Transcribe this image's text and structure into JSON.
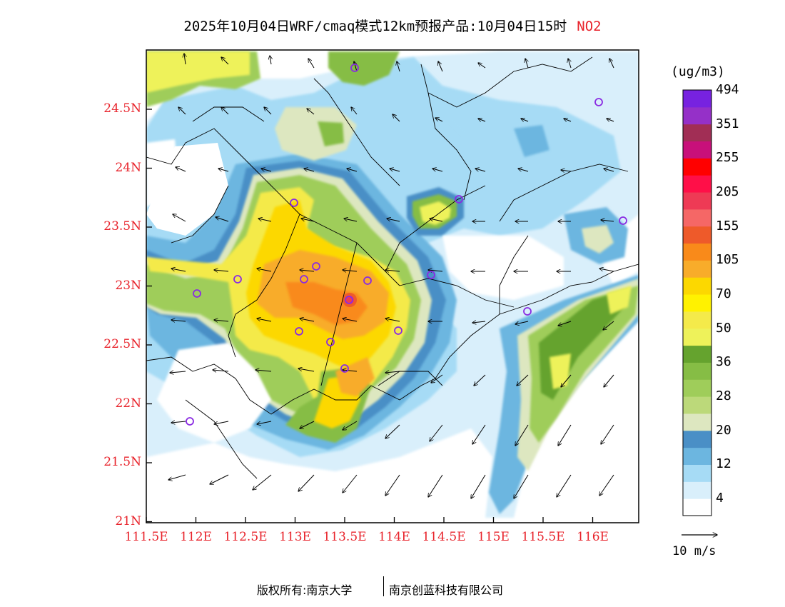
{
  "title": "2025年10月04日WRF/cmaq模式12km预报产品:10月04日15时",
  "pollutant": "NO2",
  "unit_label": "(ug/m3)",
  "lat_labels": [
    "24.5N",
    "24N",
    "23.5N",
    "23N",
    "22.5N",
    "22N",
    "21.5N",
    "21N"
  ],
  "lon_labels": [
    "111.5E",
    "112E",
    "112.5E",
    "113E",
    "113.5E",
    "114E",
    "114.5E",
    "115E",
    "115.5E",
    "116E"
  ],
  "colorbar": {
    "colors": [
      "#ffffff",
      "#d9effb",
      "#a6dbf5",
      "#6cb6e0",
      "#4a8fc6",
      "#dde7c0",
      "#bcd97a",
      "#9fcd5a",
      "#86bd45",
      "#65a32e",
      "#eef25a",
      "#f4ea4a",
      "#fff200",
      "#fcd800",
      "#f8ac2a",
      "#f98a1a",
      "#ee5a2a",
      "#f56766",
      "#ee3a55",
      "#ff0f48",
      "#ff0000",
      "#c8107a",
      "#a12e55",
      "#9530c8",
      "#7722e0"
    ],
    "labels": [
      "4",
      "12",
      "20",
      "28",
      "36",
      "50",
      "70",
      "105",
      "155",
      "205",
      "255",
      "351",
      "494"
    ]
  },
  "wind_scale_label": "10 m/s",
  "stations_icon": "monitoring-station-circle-icon",
  "footer": {
    "left": "版权所有:南京大学",
    "right": "南京创蓝科技有限公司"
  }
}
